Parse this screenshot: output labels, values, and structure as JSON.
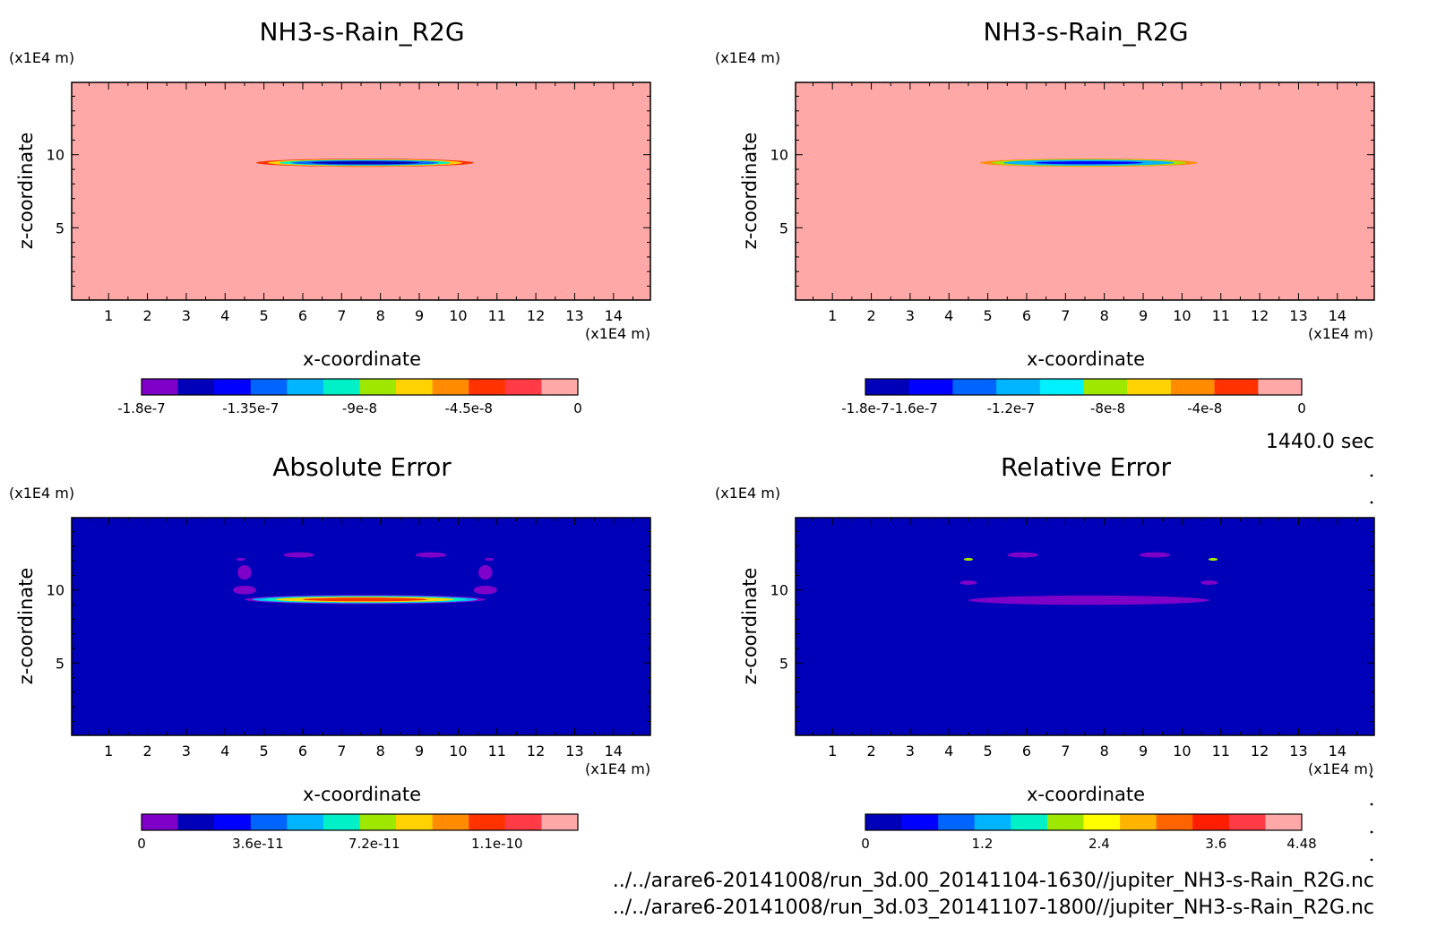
{
  "panels": [
    {
      "title": "NH3-s-Rain_R2G",
      "z_unit": "(x1E4 m)",
      "x_unit": "(x1E4 m)",
      "xlabel": "x-coordinate",
      "ylabel": "z-coordinate",
      "field_kind": "rain"
    },
    {
      "title": "NH3-s-Rain_R2G",
      "z_unit": "(x1E4 m)",
      "x_unit": "(x1E4 m)",
      "xlabel": "x-coordinate",
      "ylabel": "z-coordinate",
      "field_kind": "rain"
    },
    {
      "title": "Absolute Error",
      "z_unit": "(x1E4 m)",
      "x_unit": "(x1E4 m)",
      "xlabel": "x-coordinate",
      "ylabel": "z-coordinate",
      "field_kind": "abs_error"
    },
    {
      "title": "Relative Error",
      "z_unit": "(x1E4 m)",
      "x_unit": "(x1E4 m)",
      "xlabel": "x-coordinate",
      "ylabel": "z-coordinate",
      "field_kind": "rel_error"
    }
  ],
  "time_label": "1440.0 sec",
  "file_paths": [
    "../../arare6-20141008/run_3d.00_20141104-1630//jupiter_NH3-s-Rain_R2G.nc",
    "../../arare6-20141008/run_3d.03_20141107-1800//jupiter_NH3-s-Rain_R2G.nc"
  ],
  "colors": {
    "background_rain": "#ffa8a8",
    "background_error": "#0000b8"
  },
  "chart_data": [
    {
      "type": "heatmap",
      "title": "NH3-s-Rain_R2G",
      "xlabel": "x-coordinate",
      "ylabel": "z-coordinate",
      "x_unit": "(x1E4 m)",
      "y_unit": "(x1E4 m)",
      "xlim": [
        0.05,
        14.95
      ],
      "ylim": [
        0.05,
        14.95
      ],
      "xticks": [
        "1",
        "2",
        "3",
        "4",
        "5",
        "6",
        "7",
        "8",
        "9",
        "10",
        "11",
        "12",
        "13",
        "14"
      ],
      "yticks": [
        "5",
        "10"
      ],
      "colorbar": {
        "range": [
          -1.8e-07,
          0
        ],
        "tick_values": [
          -1.8e-07,
          -1.35e-07,
          -9e-08,
          -4.5e-08,
          0
        ],
        "tick_labels": [
          "-1.8e-7",
          "-1.35e-7",
          "-9e-8",
          "-4.5e-8",
          "0"
        ],
        "colors": [
          "#7f00c8",
          "#0000b8",
          "#0000ff",
          "#0064ff",
          "#00b4ff",
          "#00f0c8",
          "#9ee800",
          "#ffd200",
          "#ff8c00",
          "#ff3200",
          "#ff3c46",
          "#ffa8a8"
        ]
      },
      "feature": "thin negative band centered near z = 9.4, spanning x = 4.8 to 10.4, minimum about -1.8e-7"
    },
    {
      "type": "heatmap",
      "title": "NH3-s-Rain_R2G",
      "xlabel": "x-coordinate",
      "ylabel": "z-coordinate",
      "x_unit": "(x1E4 m)",
      "y_unit": "(x1E4 m)",
      "xlim": [
        0.05,
        14.95
      ],
      "ylim": [
        0.05,
        14.95
      ],
      "xticks": [
        "1",
        "2",
        "3",
        "4",
        "5",
        "6",
        "7",
        "8",
        "9",
        "10",
        "11",
        "12",
        "13",
        "14"
      ],
      "yticks": [
        "5",
        "10"
      ],
      "colorbar": {
        "range": [
          -1.8e-07,
          0
        ],
        "tick_values": [
          -1.8e-07,
          -1.6e-07,
          -1.2e-07,
          -8e-08,
          -4e-08,
          0
        ],
        "tick_labels": [
          "-1.8e-7",
          "-1.6e-7",
          "-1.2e-7",
          "-8e-8",
          "-4e-8",
          "0"
        ],
        "colors": [
          "#0000b8",
          "#0000ff",
          "#0064ff",
          "#00b4ff",
          "#00f0ff",
          "#9ee800",
          "#ffd200",
          "#ff8c00",
          "#ff3200",
          "#ffa8a8"
        ]
      },
      "feature": "thin negative band centered near z = 9.4, spanning x = 4.8 to 10.4"
    },
    {
      "type": "heatmap",
      "title": "Absolute Error",
      "xlabel": "x-coordinate",
      "ylabel": "z-coordinate",
      "x_unit": "(x1E4 m)",
      "y_unit": "(x1E4 m)",
      "xlim": [
        0.05,
        14.95
      ],
      "ylim": [
        0.05,
        14.95
      ],
      "xticks": [
        "1",
        "2",
        "3",
        "4",
        "5",
        "6",
        "7",
        "8",
        "9",
        "10",
        "11",
        "12",
        "13",
        "14"
      ],
      "yticks": [
        "5",
        "10"
      ],
      "colorbar": {
        "range": [
          0,
          1.35e-10
        ],
        "tick_values": [
          0,
          3.6e-11,
          7.2e-11,
          1.1e-10
        ],
        "tick_labels": [
          "0",
          "3.6e-11",
          "7.2e-11",
          "1.1e-10"
        ],
        "colors": [
          "#7f00c8",
          "#0000b8",
          "#0000ff",
          "#0064ff",
          "#00b4ff",
          "#00f0c8",
          "#9ee800",
          "#ffd200",
          "#ff8c00",
          "#ff3200",
          "#ff3c46",
          "#ffa8a8"
        ]
      },
      "feature": "error band along z = 9.4 from x = 4.6 to 10.7 with maximum near 1.1e-10; small patches near z = 10-12"
    },
    {
      "type": "heatmap",
      "title": "Relative Error",
      "xlabel": "x-coordinate",
      "ylabel": "z-coordinate",
      "x_unit": "(x1E4 m)",
      "y_unit": "(x1E4 m)",
      "xlim": [
        0.05,
        14.95
      ],
      "ylim": [
        0.05,
        14.95
      ],
      "xticks": [
        "1",
        "2",
        "3",
        "4",
        "5",
        "6",
        "7",
        "8",
        "9",
        "10",
        "11",
        "12",
        "13",
        "14"
      ],
      "yticks": [
        "5",
        "10"
      ],
      "colorbar": {
        "range": [
          0,
          4.48
        ],
        "tick_values": [
          0,
          1.2,
          2.4,
          3.6,
          4.48
        ],
        "tick_labels": [
          "0",
          "1.2",
          "2.4",
          "3.6",
          "4.48"
        ],
        "colors": [
          "#0000b8",
          "#0000ff",
          "#0064ff",
          "#00b4ff",
          "#00f0c8",
          "#9ee800",
          "#ffff00",
          "#ffb400",
          "#ff6400",
          "#ff1e00",
          "#ff3c46",
          "#ffa8a8"
        ]
      },
      "feature": "low-level relative error band near z = 9.3 from x = 4.6 to 10.8; small patches near z = 10-12"
    }
  ]
}
